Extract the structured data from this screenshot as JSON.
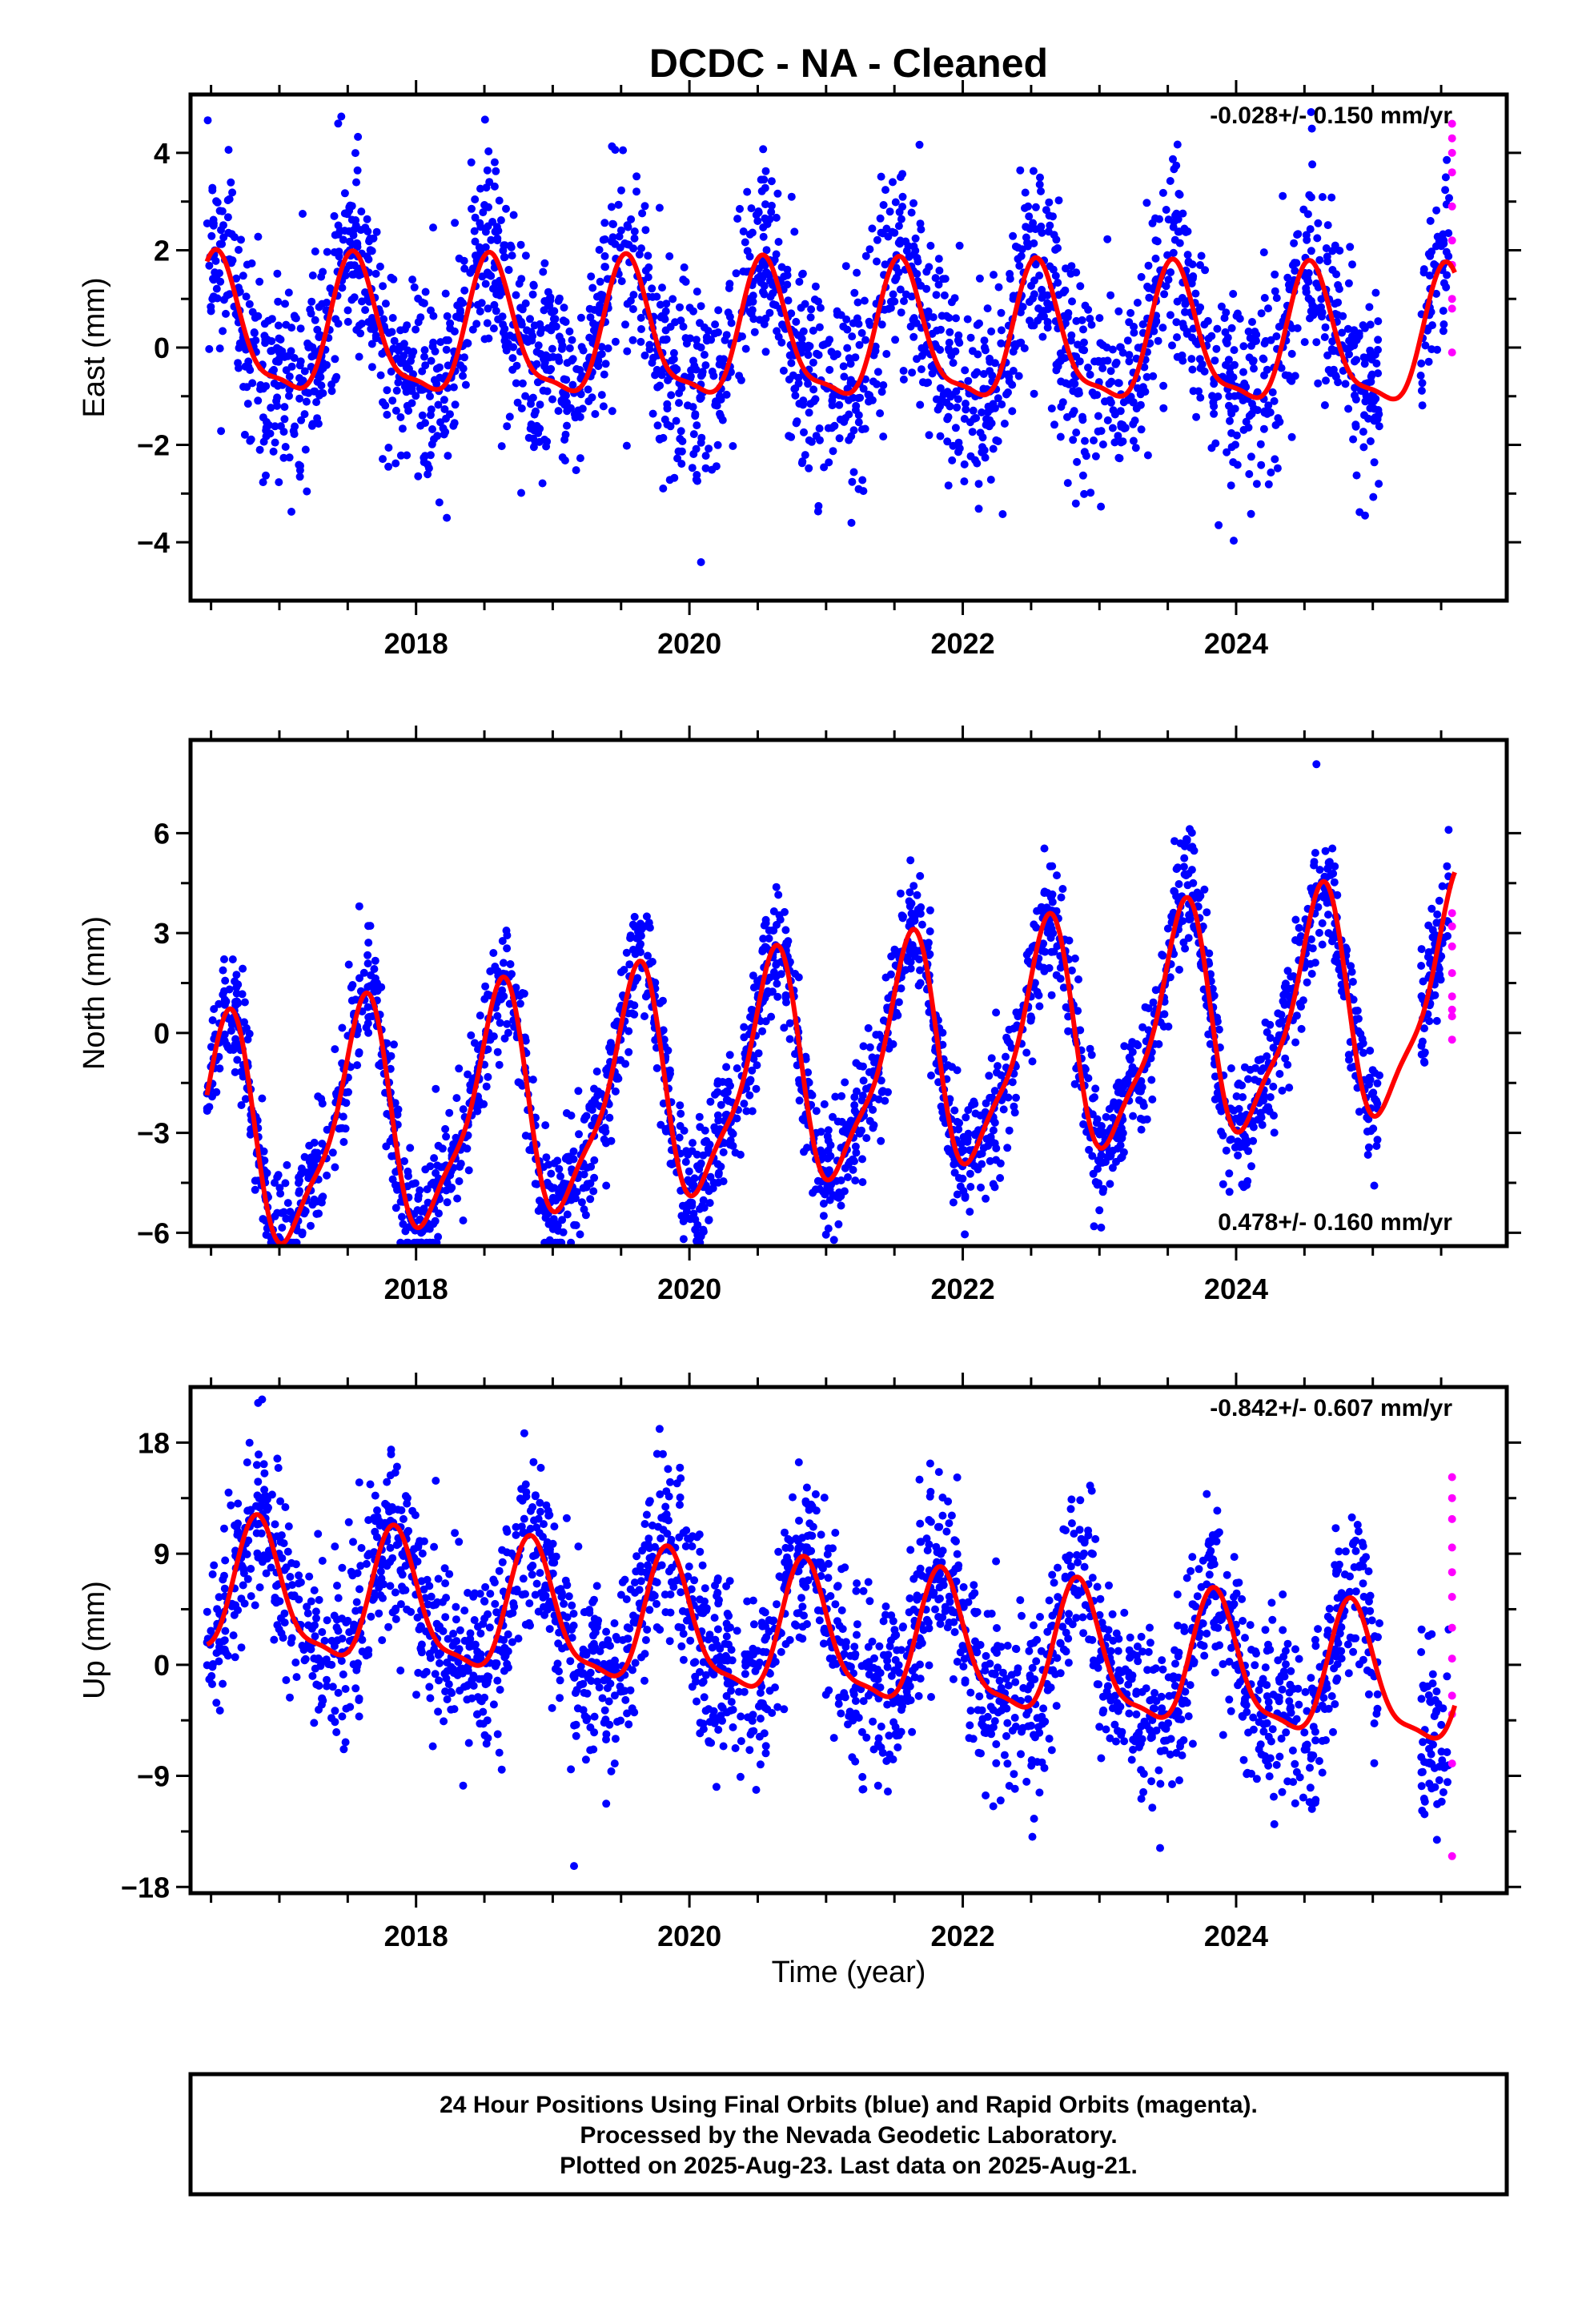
{
  "title": "DCDC  - NA - Cleaned",
  "colors": {
    "final": "#0000ff",
    "rapid": "#ff00ff",
    "model": "#ff0000",
    "frame": "#000000"
  },
  "chart_data": [
    {
      "type": "scatter",
      "panel": "east",
      "ylabel": "East (mm)",
      "xlabel": "",
      "rate_text": "-0.028+/- 0.150 mm/yr",
      "rate_position": "top-right",
      "xlim": [
        2016.35,
        2025.98
      ],
      "ylim": [
        -5.2,
        5.2
      ],
      "xticks": [
        2018,
        2020,
        2022,
        2024
      ],
      "yticks": [
        -4,
        -2,
        0,
        2,
        4
      ],
      "ytick_labels": [
        "−4",
        "−2",
        "0",
        "2",
        "4"
      ],
      "model": {
        "offset": 0.15,
        "trend": -0.028,
        "amp1": 1.35,
        "phase1": 0.3,
        "amp2": 0.4,
        "phase2": 0.4
      },
      "scatter_sd": 1.05,
      "rapid_values": [
        4.6,
        4.3,
        4.0,
        3.6,
        2.9,
        2.2,
        1.7,
        1.0,
        0.8,
        -0.1
      ],
      "gap": [
        2025.05,
        2025.35
      ]
    },
    {
      "type": "scatter",
      "panel": "north",
      "ylabel": "North (mm)",
      "xlabel": "",
      "rate_text": "0.478+/- 0.160 mm/yr",
      "rate_position": "bottom-right",
      "xlim": [
        2016.35,
        2025.98
      ],
      "ylim": [
        -6.4,
        8.8
      ],
      "xticks": [
        2018,
        2020,
        2022,
        2024
      ],
      "yticks": [
        -6,
        -3,
        0,
        3,
        6
      ],
      "ytick_labels": [
        "−6",
        "−3",
        "0",
        "3",
        "6"
      ],
      "model": {
        "offset": -1.2,
        "trend": 0.478,
        "amp1": 3.3,
        "phase1": 0.35,
        "amp2": 0.9,
        "phase2": 0.05
      },
      "scatter_sd": 0.9,
      "rapid_values": [
        3.6,
        3.2,
        2.6,
        1.8,
        1.1,
        0.7,
        0.5,
        -0.2
      ],
      "gap": [
        2025.05,
        2025.35
      ]
    },
    {
      "type": "scatter",
      "panel": "up",
      "ylabel": "Up (mm)",
      "xlabel": "Time (year)",
      "rate_text": "-0.842+/- 0.607 mm/yr",
      "rate_position": "top-right",
      "xlim": [
        2016.35,
        2025.98
      ],
      "ylim": [
        -18.5,
        22.5
      ],
      "xticks": [
        2018,
        2020,
        2022,
        2024
      ],
      "yticks": [
        -18,
        -9,
        0,
        9,
        18
      ],
      "ytick_labels": [
        "−18",
        "−9",
        "0",
        "9",
        "18"
      ],
      "model": {
        "offset": 2.0,
        "trend": -0.842,
        "amp1": 5.2,
        "phase1": 0.6,
        "amp2": 1.5,
        "phase2": 0.2
      },
      "scatter_sd": 3.6,
      "rapid_values": [
        15.2,
        13.5,
        11.8,
        9.5,
        7.5,
        5.5,
        3.0,
        0.5,
        -2.5,
        -4.0,
        -8.0,
        -15.5
      ],
      "gap": [
        2025.05,
        2025.35
      ]
    }
  ],
  "footer": {
    "line1": "24 Hour Positions Using Final Orbits (blue) and Rapid Orbits (magenta).",
    "line2": "Processed by the Nevada Geodetic Laboratory.",
    "line3": "Plotted on 2025-Aug-23. Last data on 2025-Aug-21."
  }
}
